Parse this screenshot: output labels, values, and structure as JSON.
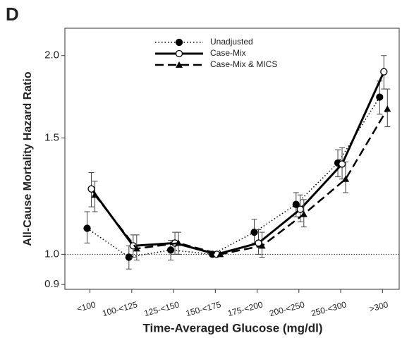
{
  "chart_data": {
    "type": "line",
    "panel": "D",
    "xlabel": "Time-Averaged Glucose (mg/dl)",
    "ylabel": "All-Cause Mortality Hazard Ratio",
    "categories": [
      "<100",
      "100-<125",
      "125-<150",
      "150-<175",
      "175-<200",
      "200-<250",
      "250-<300",
      ">300"
    ],
    "ylim": [
      0.885,
      2.2
    ],
    "yscale": "log",
    "yticks": [
      {
        "value": 0.9,
        "label": "0.9"
      },
      {
        "value": 1,
        "label": "1.0"
      },
      1.5,
      {
        "value": 2,
        "label": "2.0"
      }
    ],
    "reference_line": 1,
    "legend": "top-left",
    "series": [
      {
        "name": "Unadjusted",
        "color": "#000000",
        "line_style": "dotted",
        "marker": "circle-filled",
        "values": [
          1.095,
          0.99,
          1.015,
          1.0,
          1.08,
          1.19,
          1.375,
          1.73
        ],
        "lower": [
          1.04,
          0.95,
          0.98,
          null,
          1.04,
          1.14,
          1.31,
          1.63
        ],
        "upper": [
          1.16,
          1.03,
          1.05,
          null,
          1.13,
          1.24,
          1.44,
          1.83
        ]
      },
      {
        "name": "Case-Mix",
        "color": "#000000",
        "line_style": "solid",
        "marker": "circle-open",
        "values": [
          1.256,
          1.03,
          1.04,
          1.0,
          1.04,
          1.17,
          1.37,
          1.89
        ],
        "lower": [
          1.18,
          0.99,
          1.0,
          null,
          1.0,
          1.12,
          1.3,
          1.78
        ],
        "upper": [
          1.33,
          1.07,
          1.08,
          null,
          1.09,
          1.23,
          1.45,
          2.0
        ]
      },
      {
        "name": "Case-Mix & MICS",
        "color": "#000000",
        "line_style": "dashed",
        "marker": "triangle",
        "values": [
          1.23,
          1.02,
          1.04,
          1.0,
          1.03,
          1.15,
          1.3,
          1.66
        ],
        "lower": [
          1.16,
          0.98,
          1.0,
          null,
          0.99,
          1.1,
          1.24,
          1.56
        ],
        "upper": [
          1.29,
          1.07,
          1.08,
          null,
          1.08,
          1.21,
          1.38,
          1.78
        ]
      }
    ]
  }
}
